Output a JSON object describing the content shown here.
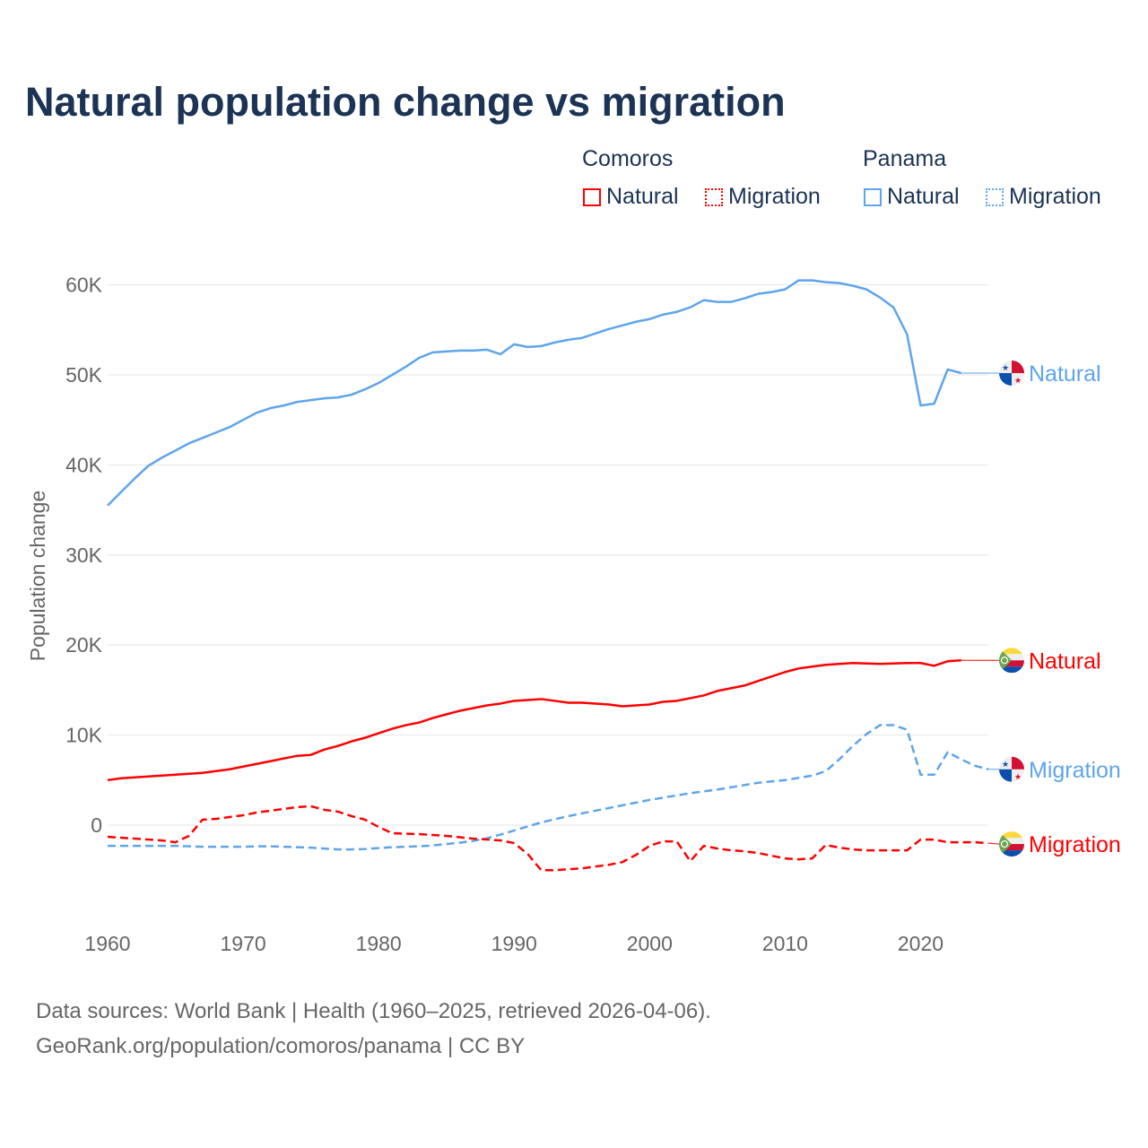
{
  "title": "Natural population change vs migration",
  "legend": {
    "groups": [
      {
        "name": "Comoros",
        "items": [
          {
            "label": "Natural",
            "style": "solid"
          },
          {
            "label": "Migration",
            "style": "dotted"
          }
        ],
        "color": "#ff0000"
      },
      {
        "name": "Panama",
        "items": [
          {
            "label": "Natural",
            "style": "solid"
          },
          {
            "label": "Migration",
            "style": "dotted"
          }
        ],
        "color": "#5ea5eb"
      }
    ]
  },
  "source_line1": "Data sources: World Bank | Health (1960–2025, retrieved 2026-04-06).",
  "source_line2": "GeoRank.org/population/comoros/panama | CC BY",
  "chart_data": {
    "type": "line",
    "title": "Natural population change vs migration",
    "xlabel": "",
    "ylabel": "Population change",
    "xlim": [
      1960,
      2025
    ],
    "ylim": [
      -10000,
      65000
    ],
    "yticks": [
      0,
      10000,
      20000,
      30000,
      40000,
      50000,
      60000
    ],
    "ytick_labels": [
      "0",
      "10K",
      "20K",
      "30K",
      "40K",
      "50K",
      "60K"
    ],
    "xticks": [
      1960,
      1970,
      1980,
      1990,
      2000,
      2010,
      2020
    ],
    "grid": true,
    "series": [
      {
        "name": "Natural",
        "country": "Panama",
        "color": "#5ea5eb",
        "dash": "solid",
        "end_label": "Natural",
        "start": 1960,
        "values": [
          35500,
          37000,
          38500,
          39900,
          40800,
          41600,
          42400,
          43000,
          43600,
          44200,
          45000,
          45800,
          46300,
          46600,
          47000,
          47200,
          47400,
          47500,
          47800,
          48400,
          49100,
          50000,
          50900,
          51900,
          52500,
          52600,
          52700,
          52700,
          52800,
          52300,
          53400,
          53100,
          53200,
          53600,
          53900,
          54100,
          54600,
          55100,
          55500,
          55900,
          56200,
          56700,
          57000,
          57500,
          58300,
          58100,
          58100,
          58500,
          59000,
          59200,
          59500,
          60500,
          60500,
          60300,
          60200,
          59900,
          59500,
          58600,
          57500,
          54500,
          46600,
          46800,
          50600,
          50200
        ]
      },
      {
        "name": "Natural",
        "country": "Comoros",
        "color": "#ff0000",
        "dash": "solid",
        "end_label": "Natural",
        "start": 1960,
        "values": [
          5000,
          5200,
          5300,
          5400,
          5500,
          5600,
          5700,
          5800,
          6000,
          6200,
          6500,
          6800,
          7100,
          7400,
          7700,
          7800,
          8400,
          8800,
          9300,
          9700,
          10200,
          10700,
          11100,
          11400,
          11900,
          12300,
          12700,
          13000,
          13300,
          13500,
          13800,
          13900,
          14000,
          13800,
          13600,
          13600,
          13500,
          13400,
          13200,
          13300,
          13400,
          13700,
          13800,
          14100,
          14400,
          14900,
          15200,
          15500,
          16000,
          16500,
          17000,
          17400,
          17600,
          17800,
          17900,
          18000,
          17950,
          17900,
          17950,
          18000,
          18000,
          17700,
          18200,
          18300
        ]
      },
      {
        "name": "Migration",
        "country": "Panama",
        "color": "#5ea5eb",
        "dash": "dashed",
        "end_label": "Migration",
        "start": 1960,
        "values": [
          -2300,
          -2300,
          -2300,
          -2300,
          -2300,
          -2300,
          -2350,
          -2400,
          -2400,
          -2400,
          -2400,
          -2350,
          -2350,
          -2400,
          -2450,
          -2500,
          -2600,
          -2700,
          -2700,
          -2650,
          -2550,
          -2450,
          -2400,
          -2350,
          -2250,
          -2100,
          -1950,
          -1750,
          -1450,
          -1050,
          -600,
          -150,
          300,
          650,
          1000,
          1300,
          1600,
          1900,
          2200,
          2500,
          2800,
          3050,
          3300,
          3550,
          3750,
          3950,
          4200,
          4450,
          4700,
          4850,
          5000,
          5250,
          5500,
          6000,
          7300,
          8800,
          10100,
          11100,
          11100,
          10600,
          5600,
          5600,
          8100,
          7300,
          6600,
          6200
        ]
      },
      {
        "name": "Migration",
        "country": "Comoros",
        "color": "#ff0000",
        "dash": "dashed",
        "end_label": "Migration",
        "start": 1960,
        "values": [
          -1300,
          -1400,
          -1500,
          -1600,
          -1700,
          -1900,
          -1200,
          600,
          700,
          900,
          1100,
          1400,
          1600,
          1800,
          2000,
          2100,
          1700,
          1500,
          1000,
          600,
          -200,
          -900,
          -950,
          -1000,
          -1100,
          -1200,
          -1350,
          -1500,
          -1600,
          -1700,
          -2000,
          -3200,
          -5000,
          -5000,
          -4900,
          -4800,
          -4600,
          -4400,
          -4100,
          -3300,
          -2300,
          -1800,
          -1800,
          -4000,
          -2300,
          -2600,
          -2800,
          -2900,
          -3100,
          -3400,
          -3700,
          -3800,
          -3700,
          -2200,
          -2500,
          -2700,
          -2800,
          -2800,
          -2800,
          -2800,
          -1600,
          -1600,
          -1900,
          -1900,
          -1900,
          -2000
        ]
      }
    ]
  }
}
